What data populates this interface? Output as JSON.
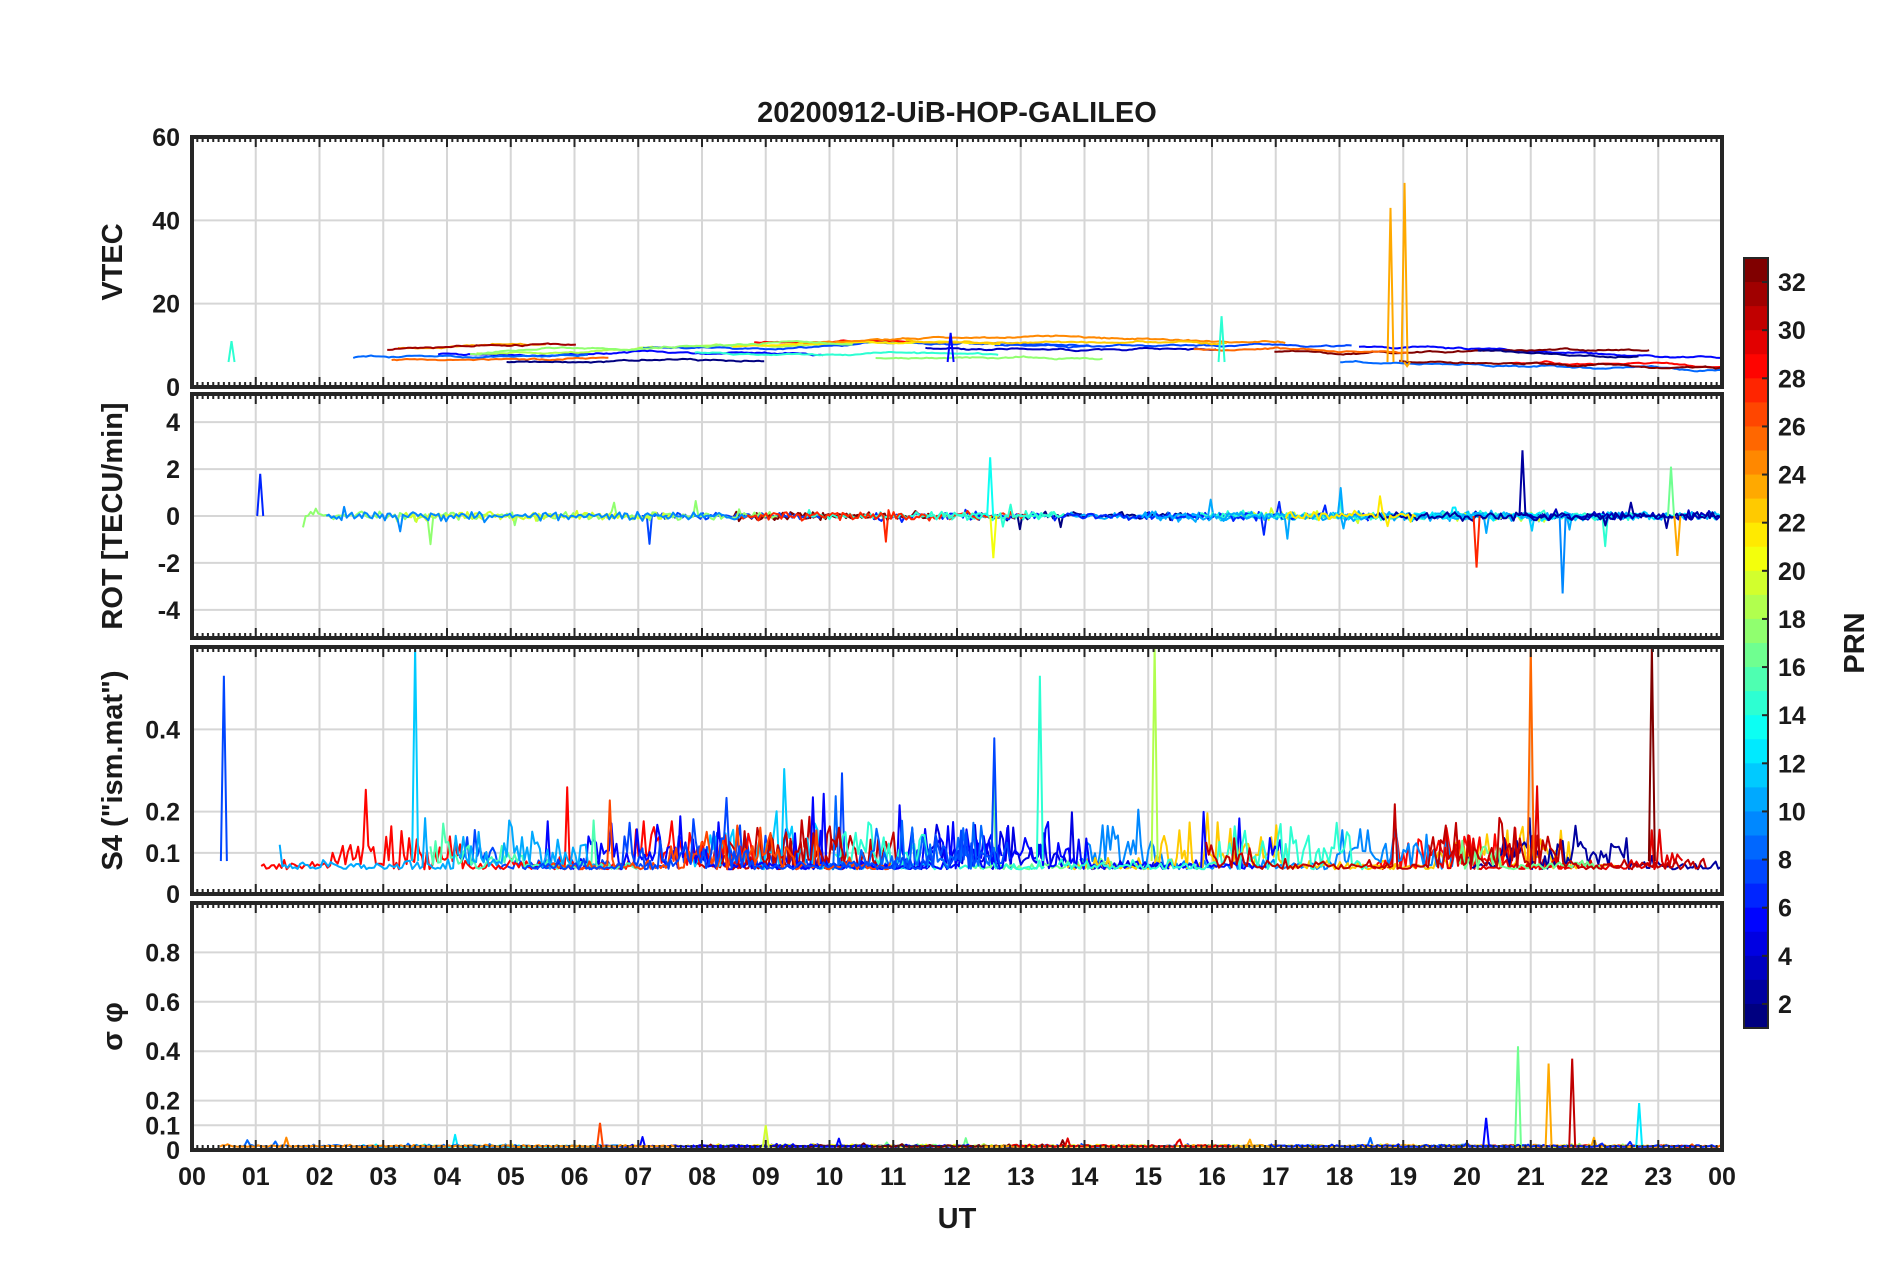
{
  "figure": {
    "title": "20200912-UiB-HOP-GALILEO",
    "xlabel": "UT",
    "x_tick_labels": [
      "00",
      "01",
      "02",
      "03",
      "04",
      "05",
      "06",
      "07",
      "08",
      "09",
      "10",
      "11",
      "12",
      "13",
      "14",
      "15",
      "16",
      "17",
      "18",
      "19",
      "20",
      "21",
      "22",
      "23",
      "00"
    ]
  },
  "colorbar": {
    "label": "PRN",
    "range": [
      1,
      32
    ],
    "tick_labels": [
      "2",
      "4",
      "6",
      "8",
      "10",
      "12",
      "14",
      "16",
      "18",
      "20",
      "22",
      "24",
      "26",
      "28",
      "30",
      "32"
    ],
    "colormap": "jet"
  },
  "chart_data": [
    {
      "type": "line",
      "panel": "VTEC",
      "ylabel": "VTEC",
      "xlim": [
        0,
        24
      ],
      "ylim": [
        0,
        60
      ],
      "y_tick_labels": [
        "0",
        "20",
        "40",
        "60"
      ],
      "grid": true,
      "description_of_series": "per-PRN VTEC traces",
      "background_level_range": [
        3,
        10
      ],
      "notable_features": [
        {
          "x": 18.8,
          "y": 43,
          "prn": 23
        },
        {
          "x": 19.02,
          "y": 49,
          "prn": 23
        },
        {
          "x": 19.06,
          "y": 5,
          "prn": 23
        },
        {
          "x": 11.9,
          "y": 13,
          "prn": 5
        },
        {
          "x": 16.15,
          "y": 17,
          "prn": 14
        },
        {
          "x": 0.62,
          "y": 11,
          "prn": 14
        }
      ]
    },
    {
      "type": "line",
      "panel": "ROT",
      "ylabel": "ROT [TECU/min]",
      "xlim": [
        0,
        24
      ],
      "ylim": [
        -5.2,
        5.2
      ],
      "y_tick_labels": [
        "-4",
        "-2",
        "0",
        "2",
        "4"
      ],
      "grid": true,
      "notable_features": [
        {
          "x": 1.07,
          "y": 1.8
        },
        {
          "x": 12.52,
          "y": 2.5
        },
        {
          "x": 12.57,
          "y": -1.8
        },
        {
          "x": 20.15,
          "y": -2.2
        },
        {
          "x": 20.87,
          "y": 2.8
        },
        {
          "x": 21.5,
          "y": -3.3
        },
        {
          "x": 23.2,
          "y": 2.1
        },
        {
          "x": 23.3,
          "y": -1.7
        }
      ]
    },
    {
      "type": "line",
      "panel": "S4",
      "ylabel": "S4 (\"ism.mat\")",
      "xlim": [
        0,
        24
      ],
      "ylim": [
        0,
        0.6
      ],
      "y_tick_labels": [
        "0",
        "0.1",
        "0.2",
        "0.4"
      ],
      "grid": true,
      "notable_features": [
        {
          "x": 3.5,
          "y": 0.6
        },
        {
          "x": 15.1,
          "y": 0.6
        },
        {
          "x": 21.0,
          "y": 0.6
        },
        {
          "x": 22.9,
          "y": 0.6
        },
        {
          "x": 0.5,
          "y": 0.53
        },
        {
          "x": 13.3,
          "y": 0.53
        }
      ]
    },
    {
      "type": "line",
      "panel": "sigma_phi",
      "ylabel": "σ φ",
      "xlim": [
        0,
        24
      ],
      "ylim": [
        0,
        1.0
      ],
      "y_tick_labels": [
        "0",
        "0.1",
        "0.2",
        "0.4",
        "0.6",
        "0.8"
      ],
      "grid": true,
      "notable_features": [
        {
          "x": 20.8,
          "y": 0.42
        },
        {
          "x": 21.28,
          "y": 0.35
        },
        {
          "x": 21.65,
          "y": 0.37
        },
        {
          "x": 20.3,
          "y": 0.13
        },
        {
          "x": 22.7,
          "y": 0.19
        },
        {
          "x": 9.0,
          "y": 0.1
        },
        {
          "x": 6.4,
          "y": 0.11
        }
      ]
    }
  ]
}
